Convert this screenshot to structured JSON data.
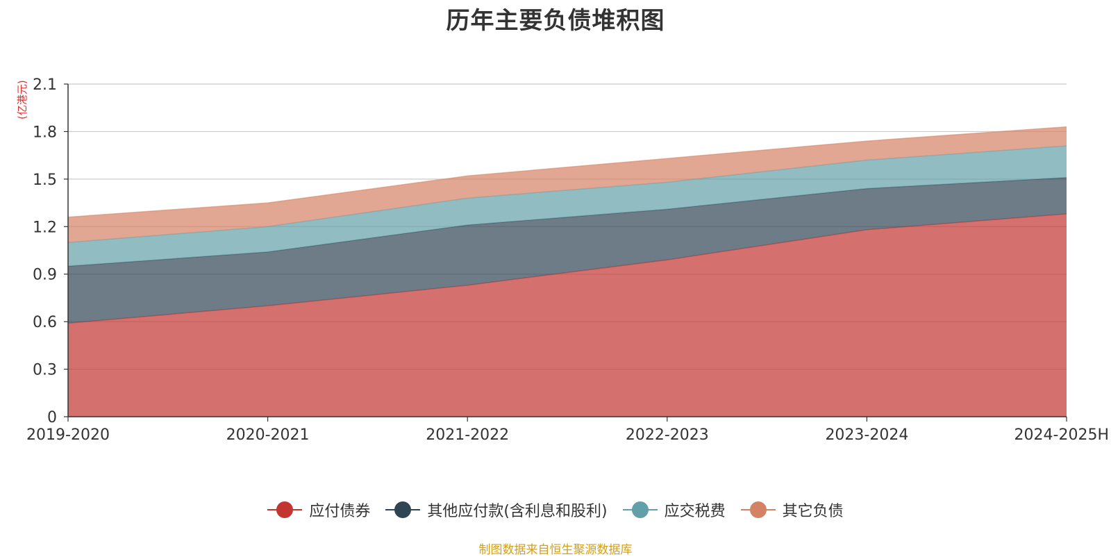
{
  "chart_data": {
    "type": "area",
    "stacked": true,
    "title": "历年主要负债堆积图",
    "unit": "(亿港元)",
    "x": [
      "2019-2020",
      "2020-2021",
      "2021-2022",
      "2022-2023",
      "2023-2024",
      "2024-2025H"
    ],
    "ylim": [
      0,
      2.1
    ],
    "yticks": [
      "0",
      "0.3",
      "0.6",
      "0.9",
      "1.2",
      "1.5",
      "1.8",
      "2.1"
    ],
    "grid": true,
    "legend_position": "bottom",
    "series": [
      {
        "name": "应付债券",
        "color": "#c23531",
        "values": [
          0.59,
          0.7,
          0.83,
          0.99,
          1.18,
          1.28
        ]
      },
      {
        "name": "其他应付款(含利息和股利)",
        "color": "#2f4554",
        "values": [
          0.36,
          0.34,
          0.38,
          0.32,
          0.26,
          0.23
        ]
      },
      {
        "name": "应交税费",
        "color": "#61a0a8",
        "values": [
          0.15,
          0.16,
          0.17,
          0.17,
          0.18,
          0.2
        ]
      },
      {
        "name": "其它负债",
        "color": "#d48265",
        "values": [
          0.16,
          0.15,
          0.14,
          0.15,
          0.12,
          0.12
        ]
      }
    ]
  },
  "source_note": "制图数据来自恒生聚源数据库"
}
